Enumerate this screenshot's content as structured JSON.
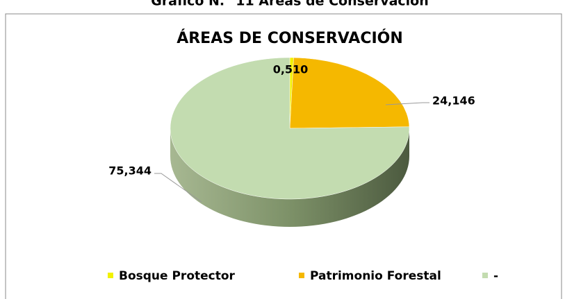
{
  "header": {
    "title": "Gráfico N.° 11 Áreas de Conservación"
  },
  "chart_data": {
    "type": "pie",
    "title": "ÁREAS DE CONSERVACIÓN",
    "series": [
      {
        "name": "Bosque Protector",
        "color": "#f2f200",
        "values": [
          0.51
        ],
        "value_labels": [
          "0,510"
        ]
      },
      {
        "name": "Patrimonio Forestal",
        "color": "#f5b800",
        "values": [
          24.146
        ],
        "value_labels": [
          "24,146"
        ]
      },
      {
        "name": "-",
        "color": "#c3dcb0",
        "values": [
          75.344
        ],
        "value_labels": [
          "75,344"
        ]
      }
    ],
    "legend": "bottom"
  }
}
